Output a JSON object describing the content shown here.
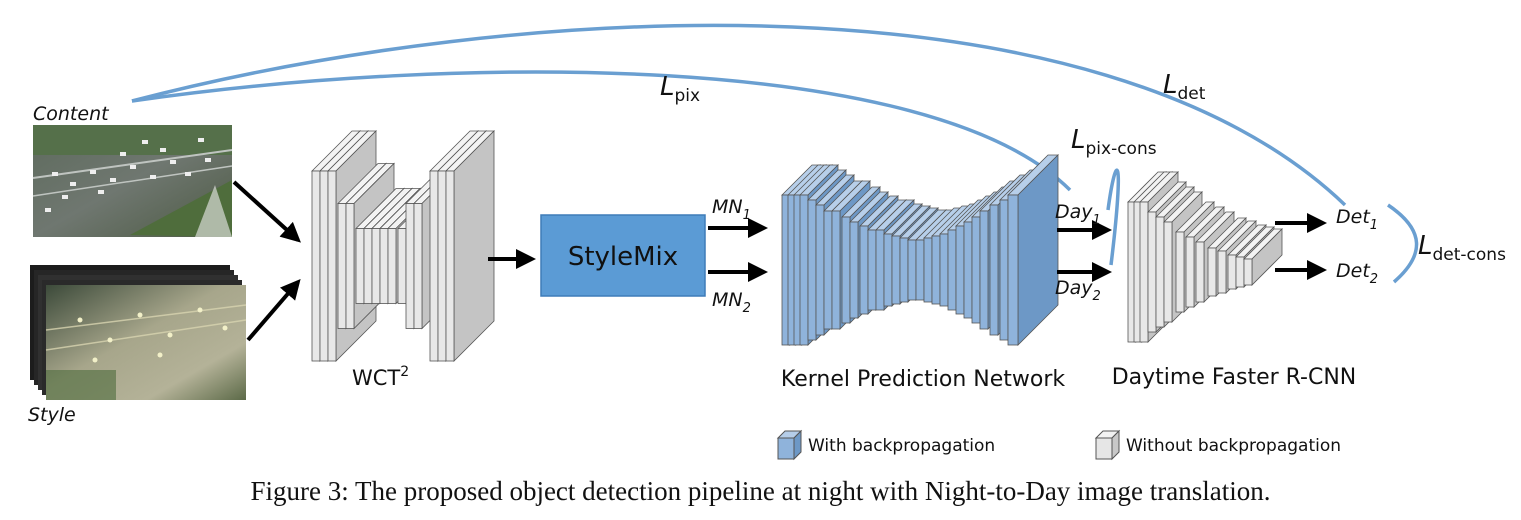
{
  "labels": {
    "content": "Content",
    "style": "Style",
    "wct": "WCT",
    "wct_sup": "2",
    "stylemix": "StyleMix",
    "mn1_base": "MN",
    "mn1_sub": "1",
    "mn2_base": "MN",
    "mn2_sub": "2",
    "kpn": "Kernel Prediction Network",
    "frcnn": "Daytime Faster R-CNN",
    "day1_base": "Day",
    "day1_sub": "1",
    "day2_base": "Day",
    "day2_sub": "2",
    "det1_base": "Det",
    "det1_sub": "1",
    "det2_base": "Det",
    "det2_sub": "2",
    "l_pix_base": "L",
    "l_pix_sub": "pix",
    "l_det_base": "L",
    "l_det_sub": "det",
    "l_pixcons_base": "L",
    "l_pixcons_sub": "pix-cons",
    "l_detcons_base": "L",
    "l_detcons_sub": "det-cons"
  },
  "legend": {
    "with_bp": "With backpropagation",
    "without_bp": "Without backpropagation"
  },
  "caption": "Figure 3: The proposed object detection pipeline at night with Night-to-Day image translation.",
  "colors": {
    "blue_loss": "#6a9fd1",
    "stylemix_fill": "#5b9bd5",
    "kpn_fill": "#8fb3db",
    "gray_fill": "#e6e6e6"
  }
}
